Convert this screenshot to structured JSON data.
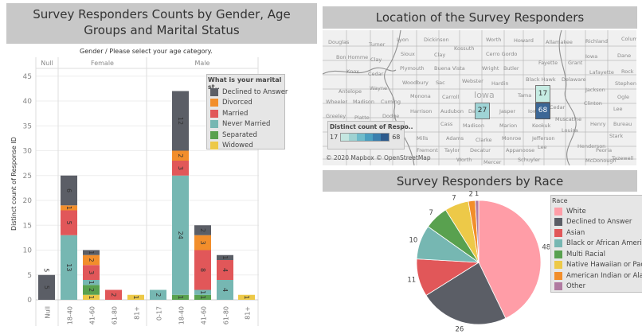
{
  "bar_chart": {
    "title": "Survey Responders Counts by Gender, Age Groups and Marital Status",
    "header": "Gender  /  Please select your age category.",
    "ylabel": "Distinct count of Response ID",
    "legend_title": "What is your marital st..",
    "chart_data": {
      "type": "bar",
      "stacked": true,
      "ylim": [
        0,
        45
      ],
      "yticks": [
        0,
        5,
        10,
        15,
        20,
        25,
        30,
        35,
        40,
        45
      ],
      "groups": [
        "Null",
        "Female",
        "Male"
      ],
      "categories": [
        {
          "group": "Null",
          "label": "Null"
        },
        {
          "group": "Female",
          "label": "18-40"
        },
        {
          "group": "Female",
          "label": "41-60"
        },
        {
          "group": "Female",
          "label": "61-80"
        },
        {
          "group": "Female",
          "label": "81+"
        },
        {
          "group": "Male",
          "label": "0-17"
        },
        {
          "group": "Male",
          "label": "18-40"
        },
        {
          "group": "Male",
          "label": "41-60"
        },
        {
          "group": "Male",
          "label": "61-80"
        },
        {
          "group": "Male",
          "label": "81+"
        }
      ],
      "series": [
        {
          "name": "Widowed",
          "color": "#edc948",
          "values": [
            0,
            0,
            1,
            0,
            1,
            0,
            0,
            0,
            0,
            1
          ]
        },
        {
          "name": "Separated",
          "color": "#59a14f",
          "values": [
            0,
            0,
            2,
            0,
            0,
            0,
            1,
            1,
            0,
            0
          ]
        },
        {
          "name": "Never Married",
          "color": "#76b7b2",
          "values": [
            0,
            13,
            1,
            0,
            0,
            2,
            24,
            1,
            4,
            0
          ]
        },
        {
          "name": "Married",
          "color": "#e15759",
          "values": [
            0,
            5,
            3,
            2,
            0,
            0,
            3,
            8,
            4,
            0
          ]
        },
        {
          "name": "Divorced",
          "color": "#f28e2b",
          "values": [
            0,
            1,
            2,
            0,
            0,
            0,
            2,
            3,
            0,
            0
          ]
        },
        {
          "name": "Declined to Answer",
          "color": "#5b5e66",
          "values": [
            5,
            6,
            1,
            0,
            0,
            0,
            12,
            2,
            1,
            0
          ]
        }
      ],
      "legend_order": [
        "Declined to Answer",
        "Divorced",
        "Married",
        "Never Married",
        "Separated",
        "Widowed"
      ],
      "grid": true
    }
  },
  "map": {
    "title": "Location of the Survey Responders",
    "legend_title": "Distinct count of Respo..",
    "legend_min": "17",
    "legend_max": "68",
    "legend_colors": [
      "#c4e6e0",
      "#9fd2d2",
      "#6fbccb",
      "#4a9fc0",
      "#3a7fae",
      "#2c5a8c"
    ],
    "copyright": "© 2020 Mapbox © OpenStreetMap",
    "state_label": "Iowa",
    "highlights": [
      {
        "value": "27",
        "color": "#9fd4d6"
      },
      {
        "value": "17",
        "color": "#c6ece3"
      },
      {
        "value": "68",
        "color": "#3c6796"
      }
    ],
    "counties": [
      "Douglas",
      "Turner",
      "Lyon",
      "Dickinson",
      "Worth",
      "Howard",
      "Allamakee",
      "Richland",
      "Columbia",
      "Kossuth",
      "Sioux",
      "Clay",
      "Cerro Gordo",
      "Bon Homme",
      "Clay",
      "Iowa",
      "Dane",
      "Plymouth",
      "Buena Vista",
      "Wright",
      "Butler",
      "Fayette",
      "Grant",
      "Knox",
      "Cedar",
      "Lafayette",
      "Rock",
      "Woodbury",
      "Sac",
      "Webster",
      "Hardin",
      "Black Hawk",
      "Delaware",
      "Stephenson",
      "Antelope",
      "Wayne",
      "Jackson",
      "Monona",
      "Carroll",
      "Tama",
      "Ogle",
      "Wheeler",
      "Madison",
      "Cuming",
      "Clinton",
      "Lee",
      "Harrison",
      "Audubon",
      "Dallas",
      "Jasper",
      "Iowa",
      "Cedar",
      "Greeley",
      "Platte",
      "Dodge",
      "Cass",
      "Madison",
      "Marion",
      "Keokuk",
      "Muscatine",
      "Henry",
      "Bureau",
      "Louisa",
      "Mills",
      "Adams",
      "Clarke",
      "Monroe",
      "Jefferson",
      "Stark",
      "Fremont",
      "Taylor",
      "Decatur",
      "Appanoose",
      "Henderson",
      "Peoria",
      "Worth",
      "Mercer",
      "Schuyler",
      "McDonough",
      "Tazewell",
      "Lee"
    ]
  },
  "pie": {
    "title": "Survey Responders by Race",
    "legend_title": "Race",
    "chart_data": {
      "type": "pie",
      "slices": [
        {
          "label": "White",
          "legend": "White",
          "value": 48,
          "color": "#ff9da7"
        },
        {
          "label": "Declined to Answer",
          "legend": "Declined to Answer",
          "value": 26,
          "color": "#5b5e66"
        },
        {
          "label": "Asian",
          "legend": "Asian",
          "value": 11,
          "color": "#e15759"
        },
        {
          "label": "Black or African American",
          "legend": "Black or African American",
          "value": 10,
          "color": "#76b7b2"
        },
        {
          "label": "Multi Racial",
          "legend": "Multi Racial",
          "value": 7,
          "color": "#59a14f"
        },
        {
          "label": "Native Hawaiian or Pacific Islander",
          "legend": "Native Hawaiian or Pacif..",
          "value": 7,
          "color": "#edc948"
        },
        {
          "label": "American Indian or Alaska Native",
          "legend": "American Indian or Alas..",
          "value": 2,
          "color": "#f28e2b"
        },
        {
          "label": "Other",
          "legend": "Other",
          "value": 1,
          "color": "#b07aa1"
        }
      ]
    }
  }
}
